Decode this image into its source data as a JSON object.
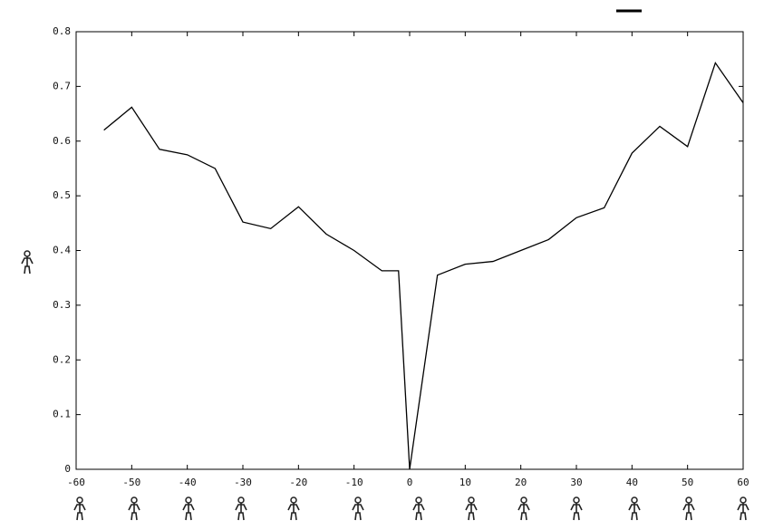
{
  "chart_data": {
    "type": "line",
    "x": [
      -55,
      -50,
      -45,
      -40,
      -35,
      -30,
      -25,
      -20,
      -15,
      -10,
      -5,
      -2,
      0,
      5,
      10,
      15,
      20,
      25,
      30,
      35,
      40,
      45,
      50,
      55,
      60
    ],
    "series": [
      {
        "color": "#000000",
        "values": [
          0.62,
          0.662,
          0.585,
          0.575,
          0.55,
          0.452,
          0.44,
          0.48,
          0.43,
          0.4,
          0.363,
          0.363,
          0,
          0.355,
          0.375,
          0.38,
          0.4,
          0.42,
          0.46,
          0.478,
          0.578,
          0.627,
          0.59,
          0.743,
          0.67
        ]
      }
    ],
    "xlim": [
      -60,
      60
    ],
    "xticks": [
      -60,
      -50,
      -40,
      -30,
      -20,
      -10,
      0,
      10,
      20,
      30,
      40,
      50,
      60
    ],
    "ylim": [
      0,
      0.8
    ],
    "yticks": [
      0,
      0.1,
      0.2,
      0.3,
      0.4,
      0.5,
      0.6,
      0.7,
      0.8
    ]
  }
}
